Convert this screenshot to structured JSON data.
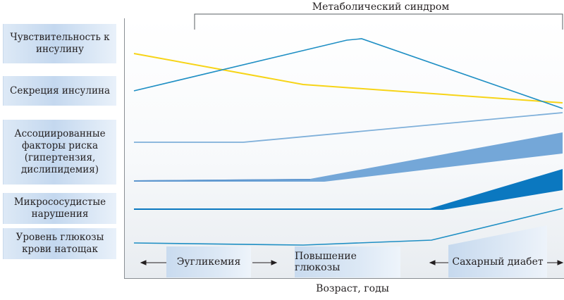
{
  "header": {
    "syndrome_label": "Метаболический синдром"
  },
  "row_labels": [
    "Чувствительность к инсулину",
    "Секреция инсулина",
    "Ассоциированные факторы риска (гипертензия, дислипидемия)",
    "Микрососудистые нарушения",
    "Уровень глюкозы крови натощак"
  ],
  "phases": {
    "euglycemia": "Эугликемия",
    "glucose_increase": "Повышение глюкозы",
    "diabetes": "Сахарный диабет"
  },
  "x_axis": {
    "label": "Возраст, годы"
  },
  "colors": {
    "insulin_sensitivity": "#f7d417",
    "insulin_secretion": "#1f8fc4",
    "risk_factors_thin": "#7fb0da",
    "risk_factors_band": "#74a7d8",
    "microvascular": "#0b78c0",
    "glucose": "#1f8fc4",
    "label_bg": "#cfe0f2"
  }
}
